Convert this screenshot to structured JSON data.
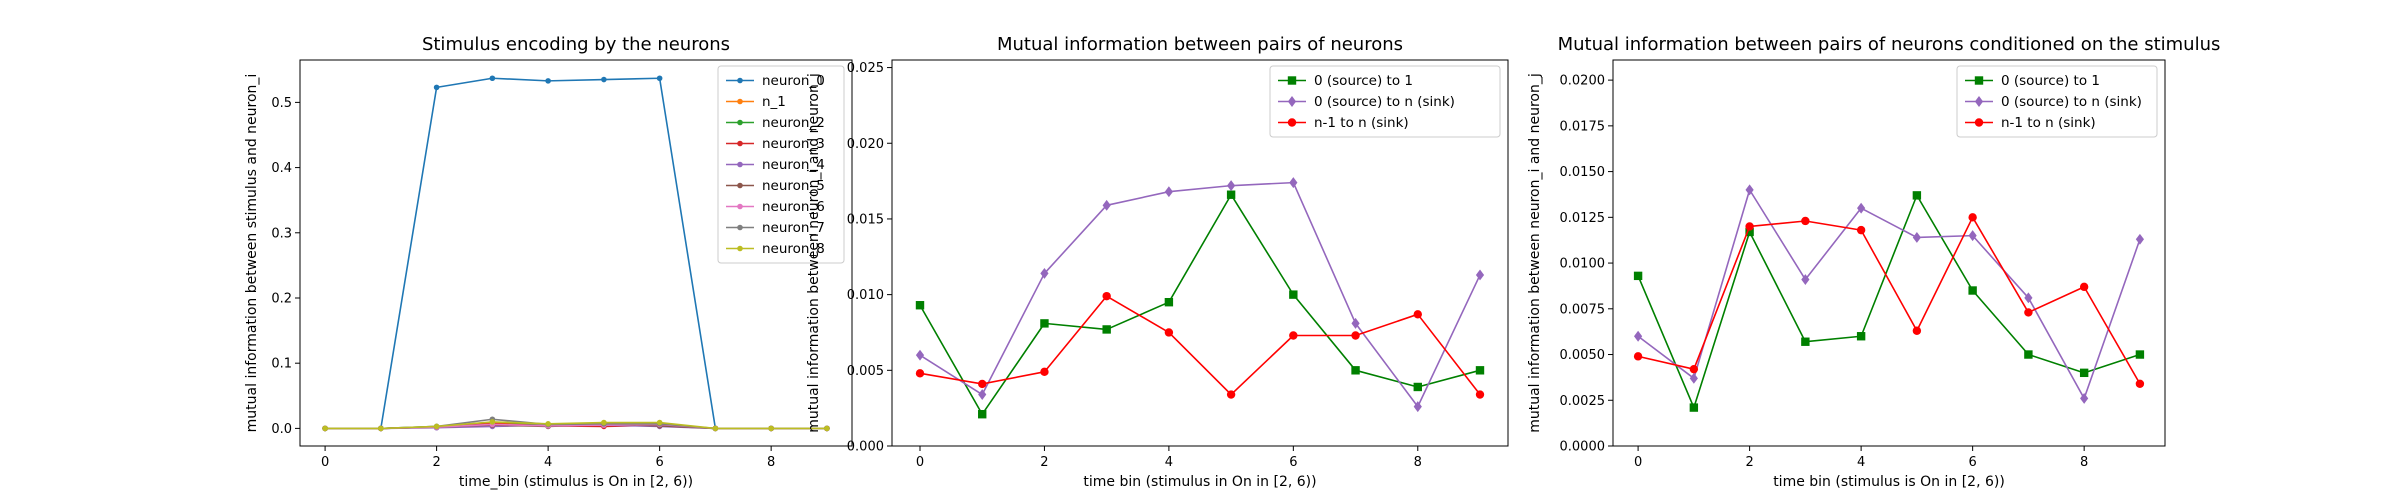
{
  "chart_data": [
    {
      "type": "line",
      "title": "Stimulus encoding by the neurons",
      "xlabel": "time_bin (stimulus is On in [2, 6))",
      "ylabel": "mutual information between stimulus and neuron_i",
      "x": [
        0,
        1,
        2,
        3,
        4,
        5,
        6,
        7,
        8,
        9
      ],
      "xlim": [
        -0.45,
        9.45
      ],
      "ylim": [
        -0.027,
        0.565
      ],
      "xticks": [
        0,
        2,
        4,
        6,
        8
      ],
      "xtick_labels": [
        "0",
        "2",
        "4",
        "6",
        "8"
      ],
      "yticks": [
        0.0,
        0.1,
        0.2,
        0.3,
        0.4,
        0.5
      ],
      "ytick_labels": [
        "0.0",
        "0.1",
        "0.2",
        "0.3",
        "0.4",
        "0.5"
      ],
      "grid": false,
      "legend_position": "upper right",
      "series": [
        {
          "name": "neuron_0",
          "color": "#1f77b4",
          "marker": "point",
          "values": [
            0.0,
            0.0,
            0.523,
            0.537,
            0.533,
            0.535,
            0.537,
            0.0,
            0.0,
            0.0
          ]
        },
        {
          "name": "n_1",
          "color": "#ff7f0e",
          "marker": "point",
          "values": [
            0.0,
            0.0,
            0.002,
            0.009,
            0.005,
            0.004,
            0.006,
            0.0,
            0.0,
            0.0
          ]
        },
        {
          "name": "neuron_2",
          "color": "#2ca02c",
          "marker": "point",
          "values": [
            0.0,
            0.0,
            0.003,
            0.006,
            0.006,
            0.006,
            0.004,
            0.0,
            0.0,
            0.0
          ]
        },
        {
          "name": "neuron_3",
          "color": "#d62728",
          "marker": "point",
          "values": [
            0.0,
            0.0,
            0.002,
            0.007,
            0.004,
            0.003,
            0.005,
            0.0,
            0.0,
            0.0
          ]
        },
        {
          "name": "neuron_4",
          "color": "#9467bd",
          "marker": "point",
          "values": [
            0.0,
            0.0,
            0.001,
            0.003,
            0.005,
            0.005,
            0.003,
            0.0,
            0.0,
            0.0
          ]
        },
        {
          "name": "neuron_5",
          "color": "#8c564b",
          "marker": "point",
          "values": [
            0.0,
            0.0,
            0.002,
            0.005,
            0.003,
            0.006,
            0.004,
            0.0,
            0.0,
            0.0
          ]
        },
        {
          "name": "neuron_6",
          "color": "#e377c2",
          "marker": "point",
          "values": [
            0.0,
            0.0,
            0.002,
            0.006,
            0.004,
            0.005,
            0.006,
            0.0,
            0.0,
            0.0
          ]
        },
        {
          "name": "neuron_7",
          "color": "#7f7f7f",
          "marker": "point",
          "values": [
            0.0,
            0.0,
            0.003,
            0.014,
            0.006,
            0.007,
            0.007,
            0.0,
            0.0,
            0.0
          ]
        },
        {
          "name": "neuron_8",
          "color": "#bcbd22",
          "marker": "point",
          "values": [
            0.0,
            0.0,
            0.003,
            0.01,
            0.007,
            0.009,
            0.009,
            0.0,
            0.0,
            0.0
          ]
        }
      ]
    },
    {
      "type": "line",
      "title": "Mutual information between pairs of neurons",
      "xlabel": "time bin (stimulus in On in [2, 6))",
      "ylabel": "mutual information between neuron_i and neuron_j",
      "x": [
        0,
        1,
        2,
        3,
        4,
        5,
        6,
        7,
        8,
        9
      ],
      "xlim": [
        -0.45,
        9.45
      ],
      "ylim": [
        0.0,
        0.0255
      ],
      "xticks": [
        0,
        2,
        4,
        6,
        8
      ],
      "xtick_labels": [
        "0",
        "2",
        "4",
        "6",
        "8"
      ],
      "yticks": [
        0.0,
        0.005,
        0.01,
        0.015,
        0.02,
        0.025
      ],
      "ytick_labels": [
        "0.000",
        "0.005",
        "0.010",
        "0.015",
        "0.020",
        "0.025"
      ],
      "grid": false,
      "legend_position": "upper right",
      "series": [
        {
          "name": "0 (source) to 1",
          "color": "#008000",
          "marker": "square",
          "values": [
            0.0093,
            0.0021,
            0.0081,
            0.0077,
            0.0095,
            0.0166,
            0.01,
            0.005,
            0.0039,
            0.005
          ]
        },
        {
          "name": "0 (source) to n (sink)",
          "color": "#9467bd",
          "marker": "diamond",
          "values": [
            0.006,
            0.0034,
            0.0114,
            0.0159,
            0.0168,
            0.0172,
            0.0174,
            0.0081,
            0.0026,
            0.0113
          ]
        },
        {
          "name": "n-1 to n (sink)",
          "color": "#ff0000",
          "marker": "circle",
          "values": [
            0.0048,
            0.0041,
            0.0049,
            0.0099,
            0.0075,
            0.0034,
            0.0073,
            0.0073,
            0.0087,
            0.0034
          ]
        }
      ]
    },
    {
      "type": "line",
      "title": "Mutual information between pairs of neurons conditioned on the stimulus",
      "xlabel": "time bin (stimulus is On in [2, 6))",
      "ylabel": "mutual information between neuron_i and neuron_j",
      "x": [
        0,
        1,
        2,
        3,
        4,
        5,
        6,
        7,
        8,
        9
      ],
      "xlim": [
        -0.45,
        9.45
      ],
      "ylim": [
        0.0,
        0.0211
      ],
      "xticks": [
        0,
        2,
        4,
        6,
        8
      ],
      "xtick_labels": [
        "0",
        "2",
        "4",
        "6",
        "8"
      ],
      "yticks": [
        0.0,
        0.0025,
        0.005,
        0.0075,
        0.01,
        0.0125,
        0.015,
        0.0175,
        0.02
      ],
      "ytick_labels": [
        "0.0000",
        "0.0025",
        "0.0050",
        "0.0075",
        "0.0100",
        "0.0125",
        "0.0150",
        "0.0175",
        "0.0200"
      ],
      "grid": false,
      "legend_position": "upper right",
      "series": [
        {
          "name": "0 (source) to 1",
          "color": "#008000",
          "marker": "square",
          "values": [
            0.0093,
            0.0021,
            0.0117,
            0.0057,
            0.006,
            0.0137,
            0.0085,
            0.005,
            0.004,
            0.005
          ]
        },
        {
          "name": "0 (source) to n (sink)",
          "color": "#9467bd",
          "marker": "diamond",
          "values": [
            0.006,
            0.0037,
            0.014,
            0.0091,
            0.013,
            0.0114,
            0.0115,
            0.0081,
            0.0026,
            0.0113
          ]
        },
        {
          "name": "n-1 to n (sink)",
          "color": "#ff0000",
          "marker": "circle",
          "values": [
            0.0049,
            0.0042,
            0.012,
            0.0123,
            0.0118,
            0.0063,
            0.0125,
            0.0073,
            0.0087,
            0.0034
          ]
        }
      ]
    }
  ]
}
